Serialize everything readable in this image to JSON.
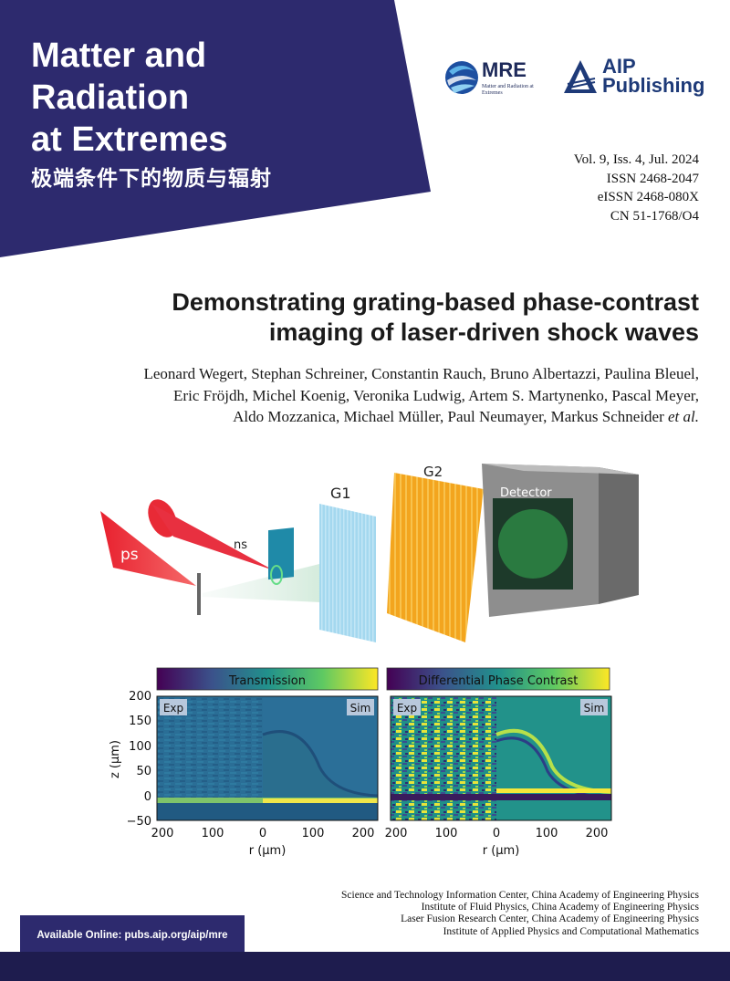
{
  "header": {
    "journal_title_lines": [
      "Matter and",
      "Radiation",
      "at Extremes"
    ],
    "journal_title_cn": "极端条件下的物质与辐射",
    "mre_logo": {
      "word": "MRE",
      "subtitle": "Matter and Radiation at Extremes"
    },
    "publisher_logo": {
      "line1": "AIP",
      "line2": "Publishing"
    },
    "issue_info": [
      "Vol. 9, Iss. 4, Jul. 2024",
      "ISSN 2468-2047",
      "eISSN 2468-080X",
      "CN 51-1768/O4"
    ],
    "colors": {
      "banner": "#2d2a6e",
      "bottom_bar": "#1e1c4e"
    }
  },
  "article": {
    "title_lines": [
      "Demonstrating grating-based phase-contrast",
      "imaging of laser-driven shock waves"
    ],
    "authors_lines": [
      "Leonard Wegert, Stephan Schreiner, Constantin Rauch, Bruno Albertazzi, Paulina Bleuel,",
      "Eric Fröjdh, Michel Koenig, Veronika Ludwig, Artem S. Martynenko, Pascal Meyer,",
      "Aldo Mozzanica, Michael Müller, Paul Neumayer, Markus Schneider"
    ],
    "authors_suffix": "et al."
  },
  "setup_figure": {
    "labels": {
      "ps": "ps",
      "ns": "ns",
      "g1": "G1",
      "g2": "G2",
      "detector": "Detector"
    }
  },
  "plots": {
    "left": {
      "title": "Transmission",
      "tag_left": "Exp",
      "tag_right": "Sim"
    },
    "right": {
      "title": "Differential Phase Contrast",
      "tag_left": "Exp",
      "tag_right": "Sim"
    },
    "y_label": "z (µm)",
    "x_label": "r (µm)",
    "y_ticks": [
      "200",
      "150",
      "100",
      "50",
      "0",
      "−50"
    ],
    "x_ticks": [
      "200",
      "100",
      "0",
      "100",
      "200"
    ]
  },
  "footer": {
    "affiliations": [
      "Science and Technology Information Center, China Academy of Engineering Physics",
      "Institute of Fluid Physics, China Academy of Engineering Physics",
      "Laser Fusion Research Center, China Academy of Engineering Physics",
      "Institute of Applied Physics and Computational Mathematics"
    ],
    "available_online": "Available Online: pubs.aip.org/aip/mre"
  }
}
